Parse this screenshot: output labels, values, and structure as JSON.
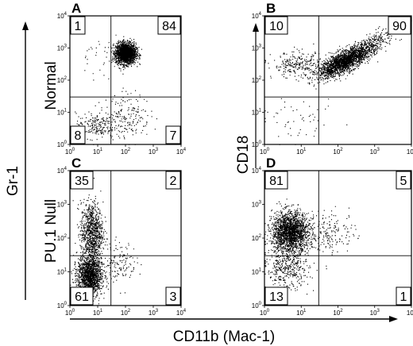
{
  "figure": {
    "y_axis_label": "Gr-1",
    "x_axis_label": "CD11b (Mac-1)",
    "row_labels": [
      "Normal",
      "PU.1 Null"
    ],
    "right_axis_label": "CD18"
  },
  "chart_data": [
    {
      "type": "scatter",
      "panel": "A",
      "xscale": "log",
      "yscale": "log",
      "xlim": [
        1,
        10000
      ],
      "ylim": [
        1,
        10000
      ],
      "gates": {
        "x": 30,
        "y": 30
      },
      "quadrant_percentages": {
        "upper_left": "1",
        "upper_right": "84",
        "lower_left": "8",
        "lower_right": "7"
      },
      "populations": [
        {
          "center": [
            100,
            700
          ],
          "spread_log": [
            0.18,
            0.16
          ],
          "share": 0.84
        },
        {
          "center": [
            8,
            4
          ],
          "spread_log": [
            0.35,
            0.2
          ],
          "share": 0.08
        },
        {
          "center": [
            120,
            8
          ],
          "spread_log": [
            0.4,
            0.35
          ],
          "share": 0.07
        },
        {
          "center": [
            8,
            500
          ],
          "spread_log": [
            0.3,
            0.35
          ],
          "share": 0.01
        }
      ]
    },
    {
      "type": "scatter",
      "panel": "B",
      "xscale": "log",
      "yscale": "log",
      "xlim": [
        1,
        10000
      ],
      "ylim": [
        1,
        10000
      ],
      "gates": {
        "x": 30,
        "y": 30
      },
      "quadrant_percentages": {
        "upper_left": "10",
        "upper_right": "90"
      },
      "populations": [
        {
          "center": [
            150,
            400
          ],
          "spread_log": [
            0.35,
            0.25
          ],
          "share": 0.78,
          "correlated": true
        },
        {
          "center": [
            8,
            300
          ],
          "spread_log": [
            0.35,
            0.2
          ],
          "share": 0.1
        },
        {
          "center": [
            1000,
            1500
          ],
          "spread_log": [
            0.3,
            0.25
          ],
          "share": 0.1,
          "correlated": true
        },
        {
          "center": [
            10,
            5
          ],
          "spread_log": [
            0.5,
            0.3
          ],
          "share": 0.02
        }
      ]
    },
    {
      "type": "scatter",
      "panel": "C",
      "xscale": "log",
      "yscale": "log",
      "xlim": [
        1,
        10000
      ],
      "ylim": [
        1,
        10000
      ],
      "gates": {
        "x": 30,
        "y": 30
      },
      "quadrant_percentages": {
        "upper_left": "35",
        "upper_right": "2",
        "lower_left": "61",
        "lower_right": "3"
      },
      "populations": [
        {
          "center": [
            5,
            8
          ],
          "spread_log": [
            0.22,
            0.3
          ],
          "share": 0.6
        },
        {
          "center": [
            6,
            150
          ],
          "spread_log": [
            0.2,
            0.45
          ],
          "share": 0.35
        },
        {
          "center": [
            60,
            20
          ],
          "spread_log": [
            0.3,
            0.3
          ],
          "share": 0.05
        }
      ]
    },
    {
      "type": "scatter",
      "panel": "D",
      "xscale": "log",
      "yscale": "log",
      "xlim": [
        1,
        10000
      ],
      "ylim": [
        1,
        10000
      ],
      "gates": {
        "x": 30,
        "y": 30
      },
      "quadrant_percentages": {
        "upper_left": "81",
        "upper_right": "5",
        "lower_left": "13",
        "lower_right": "1"
      },
      "populations": [
        {
          "center": [
            5,
            150
          ],
          "spread_log": [
            0.25,
            0.3
          ],
          "share": 0.78
        },
        {
          "center": [
            4,
            12
          ],
          "spread_log": [
            0.3,
            0.3
          ],
          "share": 0.15
        },
        {
          "center": [
            60,
            150
          ],
          "spread_log": [
            0.35,
            0.3
          ],
          "share": 0.07
        }
      ]
    }
  ]
}
